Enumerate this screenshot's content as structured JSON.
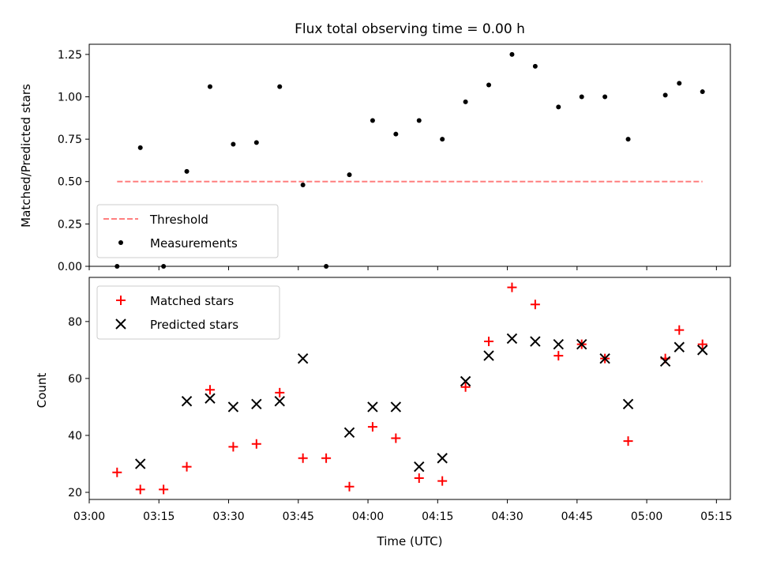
{
  "chart_data": [
    {
      "type": "scatter",
      "title": "Flux total observing time = 0.00 h",
      "xlabel": "",
      "ylabel": "Matched/Predicted stars",
      "xlim": [
        "03:00",
        "05:18"
      ],
      "ylim": [
        0,
        1.31
      ],
      "yticks": [
        "0.00",
        "0.25",
        "0.50",
        "0.75",
        "1.00",
        "1.25"
      ],
      "threshold": {
        "name": "Threshold",
        "value": 0.5,
        "x": [
          "03:06",
          "05:12"
        ],
        "color": "#ff7f7f",
        "style": "dashed"
      },
      "series": [
        {
          "name": "Measurements",
          "color": "#000000",
          "marker": "dot",
          "points": [
            [
              "03:06",
              0.0
            ],
            [
              "03:11",
              0.7
            ],
            [
              "03:16",
              0.0
            ],
            [
              "03:21",
              0.56
            ],
            [
              "03:26",
              1.06
            ],
            [
              "03:31",
              0.72
            ],
            [
              "03:36",
              0.73
            ],
            [
              "03:41",
              1.06
            ],
            [
              "03:46",
              0.48
            ],
            [
              "03:51",
              0.0
            ],
            [
              "03:56",
              0.54
            ],
            [
              "04:01",
              0.86
            ],
            [
              "04:06",
              0.78
            ],
            [
              "04:11",
              0.86
            ],
            [
              "04:16",
              0.75
            ],
            [
              "04:21",
              0.97
            ],
            [
              "04:26",
              1.07
            ],
            [
              "04:31",
              1.25
            ],
            [
              "04:36",
              1.18
            ],
            [
              "04:41",
              0.94
            ],
            [
              "04:46",
              1.0
            ],
            [
              "04:51",
              1.0
            ],
            [
              "04:56",
              0.75
            ],
            [
              "05:04",
              1.01
            ],
            [
              "05:07",
              1.08
            ],
            [
              "05:12",
              1.03
            ]
          ]
        }
      ],
      "legend": "lower-left"
    },
    {
      "type": "scatter",
      "title": "",
      "xlabel": "Time (UTC)",
      "ylabel": "Count",
      "xlim": [
        "03:00",
        "05:18"
      ],
      "ylim": [
        17.5,
        95.5
      ],
      "xticks": [
        "03:00",
        "03:15",
        "03:30",
        "03:45",
        "04:00",
        "04:15",
        "04:30",
        "04:45",
        "05:00",
        "05:15"
      ],
      "yticks": [
        "20",
        "40",
        "60",
        "80"
      ],
      "series": [
        {
          "name": "Matched stars",
          "color": "#ff0000",
          "marker": "plus",
          "points": [
            [
              "03:06",
              27
            ],
            [
              "03:11",
              21
            ],
            [
              "03:16",
              21
            ],
            [
              "03:21",
              29
            ],
            [
              "03:26",
              56
            ],
            [
              "03:31",
              36
            ],
            [
              "03:36",
              37
            ],
            [
              "03:41",
              55
            ],
            [
              "03:46",
              32
            ],
            [
              "03:51",
              32
            ],
            [
              "03:56",
              22
            ],
            [
              "04:01",
              43
            ],
            [
              "04:06",
              39
            ],
            [
              "04:11",
              25
            ],
            [
              "04:16",
              24
            ],
            [
              "04:21",
              57
            ],
            [
              "04:26",
              73
            ],
            [
              "04:31",
              92
            ],
            [
              "04:36",
              86
            ],
            [
              "04:41",
              68
            ],
            [
              "04:46",
              72
            ],
            [
              "04:51",
              67
            ],
            [
              "04:56",
              38
            ],
            [
              "05:04",
              67
            ],
            [
              "05:07",
              77
            ],
            [
              "05:12",
              72
            ]
          ]
        },
        {
          "name": "Predicted stars",
          "color": "#000000",
          "marker": "x",
          "points": [
            [
              "03:11",
              30
            ],
            [
              "03:21",
              52
            ],
            [
              "03:26",
              53
            ],
            [
              "03:31",
              50
            ],
            [
              "03:36",
              51
            ],
            [
              "03:41",
              52
            ],
            [
              "03:46",
              67
            ],
            [
              "03:56",
              41
            ],
            [
              "04:01",
              50
            ],
            [
              "04:06",
              50
            ],
            [
              "04:11",
              29
            ],
            [
              "04:16",
              32
            ],
            [
              "04:21",
              59
            ],
            [
              "04:26",
              68
            ],
            [
              "04:31",
              74
            ],
            [
              "04:36",
              73
            ],
            [
              "04:41",
              72
            ],
            [
              "04:46",
              72
            ],
            [
              "04:51",
              67
            ],
            [
              "04:56",
              51
            ],
            [
              "05:04",
              66
            ],
            [
              "05:07",
              71
            ],
            [
              "05:12",
              70
            ]
          ]
        }
      ],
      "legend": "upper-left"
    }
  ]
}
